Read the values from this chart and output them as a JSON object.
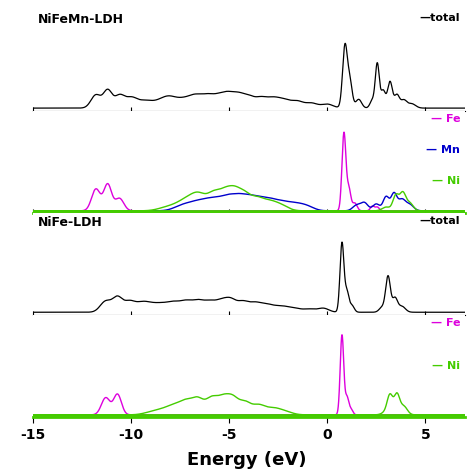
{
  "xlim": [
    -15,
    7
  ],
  "xlabel": "Energy (eV)",
  "xlabel_fontsize": 13,
  "xlabel_fontweight": "bold",
  "tick_fontsize": 10,
  "panel_labels": [
    "NiFeMn-LDH",
    "NiFe-LDH"
  ],
  "legend1_entries": [
    [
      "Fe",
      "#dd00dd"
    ],
    [
      "Mn",
      "#0000cc"
    ],
    [
      "Ni",
      "#44cc00"
    ]
  ],
  "legend2_entries": [
    [
      "Fe",
      "#dd00dd"
    ],
    [
      "Ni",
      "#44cc00"
    ]
  ],
  "legend_total": "total",
  "background_color": "#ffffff",
  "line_color_total": "#000000",
  "separator_color": "#44cc00",
  "border_color": "#000000"
}
